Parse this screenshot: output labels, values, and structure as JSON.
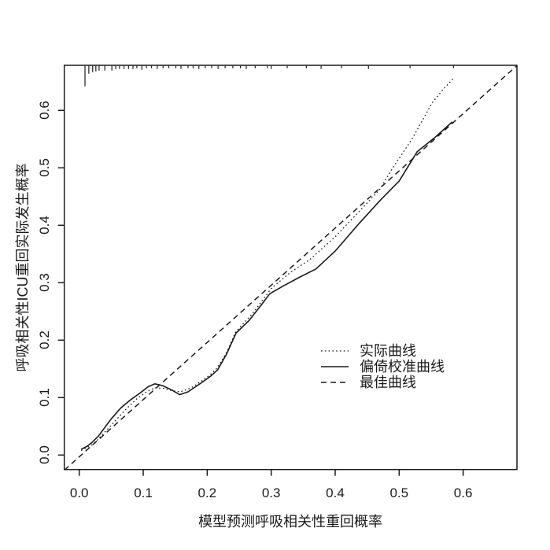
{
  "figure": {
    "background_color": "#ffffff",
    "line_color": "#1a1a1a"
  },
  "legend": {
    "items": [
      {
        "label": "实际曲线",
        "style": "dotted"
      },
      {
        "label": "偏倚校准曲线",
        "style": "solid"
      },
      {
        "label": "最佳曲线",
        "style": "dashed"
      }
    ]
  },
  "chart_data": {
    "type": "line",
    "title": "",
    "xlabel": "模型预测呼吸相关性重回概率",
    "ylabel": "呼吸相关性ICU重回实际发生概率",
    "xlim": [
      -0.023,
      0.684
    ],
    "ylim": [
      -0.026,
      0.678
    ],
    "x_ticks": [
      0.0,
      0.1,
      0.2,
      0.3,
      0.4,
      0.5,
      0.6
    ],
    "x_tick_labels": [
      "0.0",
      "0.1",
      "0.2",
      "0.3",
      "0.4",
      "0.5",
      "0.6"
    ],
    "y_ticks": [
      0.0,
      0.1,
      0.2,
      0.3,
      0.4,
      0.5,
      0.6
    ],
    "y_tick_labels": [
      "0.0",
      "0.1",
      "0.2",
      "0.3",
      "0.4",
      "0.5",
      "0.6"
    ],
    "grid": false,
    "legend_position": "inside-right-middle",
    "series": [
      {
        "name": "实际曲线",
        "style": "dotted",
        "points": [
          [
            0.003,
            0.008
          ],
          [
            0.012,
            0.013
          ],
          [
            0.02,
            0.018
          ],
          [
            0.03,
            0.028
          ],
          [
            0.045,
            0.046
          ],
          [
            0.06,
            0.064
          ],
          [
            0.075,
            0.082
          ],
          [
            0.09,
            0.098
          ],
          [
            0.105,
            0.11
          ],
          [
            0.118,
            0.117
          ],
          [
            0.132,
            0.116
          ],
          [
            0.145,
            0.112
          ],
          [
            0.158,
            0.11
          ],
          [
            0.175,
            0.117
          ],
          [
            0.19,
            0.128
          ],
          [
            0.205,
            0.14
          ],
          [
            0.216,
            0.152
          ],
          [
            0.23,
            0.178
          ],
          [
            0.245,
            0.215
          ],
          [
            0.27,
            0.245
          ],
          [
            0.3,
            0.29
          ],
          [
            0.33,
            0.318
          ],
          [
            0.36,
            0.34
          ],
          [
            0.4,
            0.38
          ],
          [
            0.44,
            0.427
          ],
          [
            0.47,
            0.463
          ],
          [
            0.49,
            0.5
          ],
          [
            0.52,
            0.55
          ],
          [
            0.552,
            0.614
          ],
          [
            0.57,
            0.638
          ],
          [
            0.585,
            0.656
          ]
        ]
      },
      {
        "name": "偏倚校准曲线",
        "style": "solid",
        "points": [
          [
            0.003,
            0.01
          ],
          [
            0.012,
            0.015
          ],
          [
            0.02,
            0.022
          ],
          [
            0.03,
            0.033
          ],
          [
            0.04,
            0.048
          ],
          [
            0.05,
            0.063
          ],
          [
            0.065,
            0.082
          ],
          [
            0.08,
            0.096
          ],
          [
            0.095,
            0.108
          ],
          [
            0.108,
            0.119
          ],
          [
            0.118,
            0.124
          ],
          [
            0.13,
            0.121
          ],
          [
            0.145,
            0.113
          ],
          [
            0.157,
            0.105
          ],
          [
            0.17,
            0.11
          ],
          [
            0.19,
            0.125
          ],
          [
            0.205,
            0.137
          ],
          [
            0.216,
            0.148
          ],
          [
            0.23,
            0.175
          ],
          [
            0.245,
            0.212
          ],
          [
            0.266,
            0.235
          ],
          [
            0.285,
            0.262
          ],
          [
            0.298,
            0.281
          ],
          [
            0.32,
            0.295
          ],
          [
            0.345,
            0.31
          ],
          [
            0.37,
            0.324
          ],
          [
            0.4,
            0.355
          ],
          [
            0.438,
            0.404
          ],
          [
            0.47,
            0.443
          ],
          [
            0.5,
            0.477
          ],
          [
            0.528,
            0.528
          ],
          [
            0.555,
            0.552
          ],
          [
            0.583,
            0.58
          ]
        ]
      },
      {
        "name": "最佳曲线",
        "style": "dashed",
        "points": [
          [
            -0.023,
            -0.026
          ],
          [
            0.684,
            0.678
          ]
        ]
      }
    ],
    "rug": {
      "position": "top",
      "ticks": [
        {
          "x": 0.009,
          "len": 26
        },
        {
          "x": 0.015,
          "len": 10
        },
        {
          "x": 0.021,
          "len": 8
        },
        {
          "x": 0.026,
          "len": 7
        },
        {
          "x": 0.031,
          "len": 6
        },
        {
          "x": 0.04,
          "len": 6
        },
        {
          "x": 0.051,
          "len": 6
        },
        {
          "x": 0.057,
          "len": 4
        },
        {
          "x": 0.063,
          "len": 4
        },
        {
          "x": 0.07,
          "len": 4
        },
        {
          "x": 0.077,
          "len": 4
        },
        {
          "x": 0.084,
          "len": 4
        },
        {
          "x": 0.09,
          "len": 3
        },
        {
          "x": 0.098,
          "len": 5
        },
        {
          "x": 0.105,
          "len": 3
        },
        {
          "x": 0.113,
          "len": 3
        },
        {
          "x": 0.122,
          "len": 4
        },
        {
          "x": 0.131,
          "len": 3
        },
        {
          "x": 0.14,
          "len": 3
        },
        {
          "x": 0.151,
          "len": 3
        },
        {
          "x": 0.159,
          "len": 4
        },
        {
          "x": 0.17,
          "len": 3
        },
        {
          "x": 0.178,
          "len": 3
        },
        {
          "x": 0.187,
          "len": 4
        },
        {
          "x": 0.197,
          "len": 3
        },
        {
          "x": 0.207,
          "len": 3
        },
        {
          "x": 0.217,
          "len": 4
        },
        {
          "x": 0.228,
          "len": 3
        },
        {
          "x": 0.24,
          "len": 3
        },
        {
          "x": 0.252,
          "len": 3
        },
        {
          "x": 0.261,
          "len": 4
        },
        {
          "x": 0.275,
          "len": 3
        },
        {
          "x": 0.294,
          "len": 3
        },
        {
          "x": 0.3,
          "len": 4
        },
        {
          "x": 0.325,
          "len": 3
        },
        {
          "x": 0.355,
          "len": 3
        },
        {
          "x": 0.378,
          "len": 4
        },
        {
          "x": 0.41,
          "len": 3
        },
        {
          "x": 0.452,
          "len": 4
        },
        {
          "x": 0.517,
          "len": 3
        },
        {
          "x": 0.585,
          "len": 3
        }
      ]
    }
  }
}
